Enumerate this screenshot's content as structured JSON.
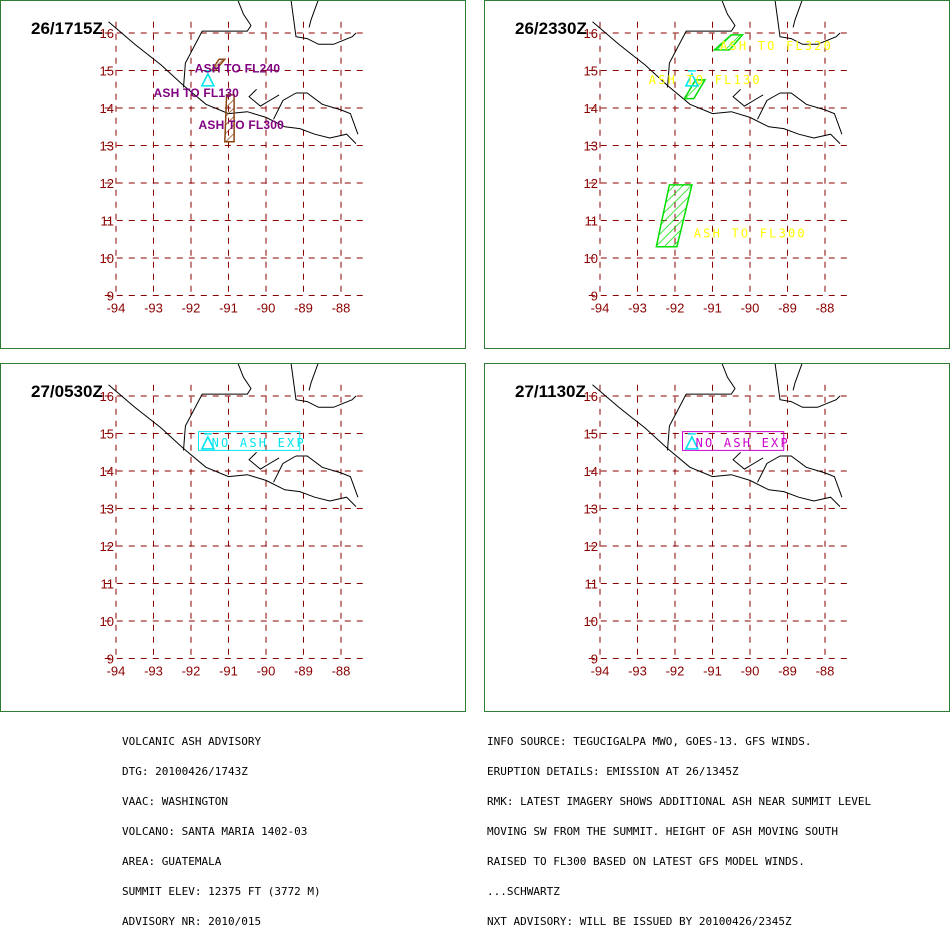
{
  "axes": {
    "lon_ticks": [
      "-94",
      "-93",
      "-92",
      "-91",
      "-90",
      "-89",
      "-88"
    ],
    "lat_ticks": [
      "16",
      "15",
      "14",
      "13",
      "12",
      "11",
      "10",
      "9"
    ]
  },
  "colors": {
    "grid": "#8b0000",
    "tick_labels": "#8b0000",
    "coast": "#000000",
    "panel_border": "#2e7d32",
    "volcano_symbol": "#00e5ee",
    "panel1_text": "#800080",
    "panel1_area": "#8b4513",
    "panel2_text": "#ffff00",
    "panel2_area": "#00dd00",
    "panel3_text": "#00e5ee",
    "panel4_text": "#cc00cc"
  },
  "panels": [
    {
      "time": "26/1715Z",
      "labels": [
        {
          "text": "ASH TO FL240",
          "lon": -91.9,
          "lat": 15.05
        },
        {
          "text": "ASH TO FL130",
          "lon": -93.0,
          "lat": 14.4
        },
        {
          "text": "ASH TO FL300",
          "lon": -91.8,
          "lat": 13.55
        }
      ],
      "areas": [
        [
          [
            -91.45,
            15.0
          ],
          [
            -91.35,
            15.0
          ],
          [
            -91.1,
            15.3
          ],
          [
            -91.25,
            15.3
          ]
        ],
        [
          [
            -91.05,
            14.35
          ],
          [
            -91.1,
            13.1
          ],
          [
            -90.85,
            13.1
          ],
          [
            -90.85,
            14.35
          ]
        ]
      ],
      "volcano": {
        "lon": -91.55,
        "lat": 14.75
      }
    },
    {
      "time": "26/2330Z",
      "labels": [
        {
          "text": "ASH TO FL320",
          "lon": -90.8,
          "lat": 15.65
        },
        {
          "text": "ASH TO FL130",
          "lon": -92.7,
          "lat": 14.75
        },
        {
          "text": "ASH TO FL300",
          "lon": -91.5,
          "lat": 10.65
        }
      ],
      "areas": [
        [
          [
            -90.95,
            15.55
          ],
          [
            -90.5,
            15.95
          ],
          [
            -90.2,
            15.95
          ],
          [
            -90.55,
            15.55
          ]
        ],
        [
          [
            -91.75,
            14.25
          ],
          [
            -91.5,
            14.25
          ],
          [
            -91.2,
            14.75
          ],
          [
            -91.45,
            14.75
          ]
        ],
        [
          [
            -92.15,
            11.95
          ],
          [
            -92.5,
            10.3
          ],
          [
            -91.95,
            10.3
          ],
          [
            -91.55,
            11.95
          ]
        ]
      ],
      "volcano": {
        "lon": -91.55,
        "lat": 14.75
      }
    },
    {
      "time": "27/0530Z",
      "labels": [
        {
          "text": "NO ASH EXP",
          "lon": -91.45,
          "lat": 14.75
        }
      ],
      "boxes": [
        [
          -91.8,
          14.55,
          -89.1,
          15.05
        ]
      ],
      "volcano": {
        "lon": -91.55,
        "lat": 14.75
      }
    },
    {
      "time": "27/1130Z",
      "labels": [
        {
          "text": "NO ASH EXP",
          "lon": -91.45,
          "lat": 14.75
        }
      ],
      "boxes": [
        [
          -91.8,
          14.55,
          -89.1,
          15.05
        ]
      ],
      "volcano": {
        "lon": -91.55,
        "lat": 14.75
      }
    }
  ],
  "advisory_left": [
    "VOLCANIC ASH ADVISORY",
    "DTG: 20100426/1743Z",
    "VAAC: WASHINGTON",
    "VOLCANO: SANTA MARIA 1402-03",
    "AREA: GUATEMALA",
    "SUMMIT ELEV: 12375 FT (3772 M)",
    "ADVISORY NR: 2010/015"
  ],
  "advisory_right": [
    "INFO SOURCE: TEGUCIGALPA MWO, GOES-13. GFS WINDS.",
    "ERUPTION DETAILS: EMISSION AT 26/1345Z",
    "RMK: LATEST IMAGERY SHOWS ADDITIONAL ASH NEAR SUMMIT LEVEL",
    "MOVING SW FROM THE SUMMIT. HEIGHT OF ASH MOVING SOUTH",
    "RAISED TO FL300 BASED ON LATEST GFS MODEL WINDS.",
    "...SCHWARTZ",
    "NXT ADVISORY: WILL BE ISSUED BY 20100426/2345Z"
  ]
}
